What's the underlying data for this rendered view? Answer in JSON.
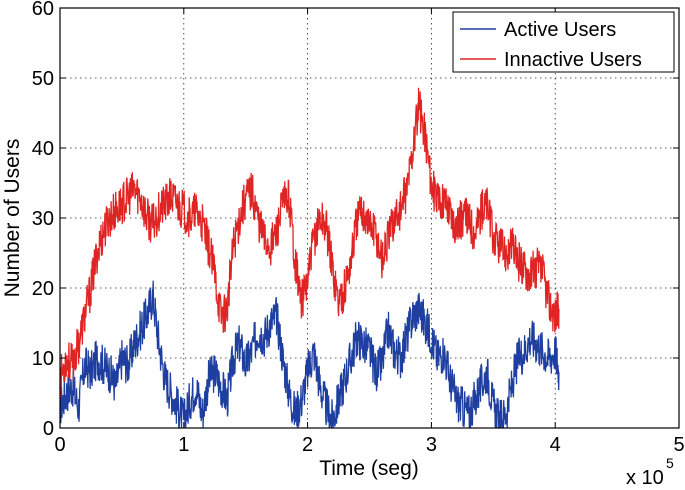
{
  "chart_data": {
    "type": "line",
    "title": "",
    "xlabel": "Time (seg)",
    "ylabel": "Number of Users",
    "x_multiplier_label": "x 10",
    "x_multiplier_exponent": "5",
    "xlim": [
      0,
      5
    ],
    "ylim": [
      0,
      60
    ],
    "x_ticks": [
      0,
      1,
      2,
      3,
      4,
      5
    ],
    "y_ticks": [
      0,
      10,
      20,
      30,
      40,
      50,
      60
    ],
    "x_tick_labels": [
      "0",
      "1",
      "2",
      "3",
      "4",
      "5"
    ],
    "y_tick_labels": [
      "0",
      "10",
      "20",
      "30",
      "40",
      "50",
      "60"
    ],
    "grid": true,
    "legend_position": "top-right",
    "series": [
      {
        "name": "Active Users",
        "color": "#1f3fa0",
        "x": [
          0,
          0.05,
          0.1,
          0.15,
          0.2,
          0.25,
          0.3,
          0.35,
          0.4,
          0.45,
          0.5,
          0.55,
          0.6,
          0.65,
          0.7,
          0.75,
          0.8,
          0.85,
          0.9,
          0.95,
          1.0,
          1.05,
          1.1,
          1.15,
          1.2,
          1.25,
          1.3,
          1.35,
          1.4,
          1.45,
          1.5,
          1.55,
          1.6,
          1.65,
          1.7,
          1.75,
          1.8,
          1.85,
          1.9,
          1.95,
          2.0,
          2.05,
          2.1,
          2.15,
          2.2,
          2.25,
          2.3,
          2.35,
          2.4,
          2.45,
          2.5,
          2.55,
          2.6,
          2.65,
          2.7,
          2.75,
          2.8,
          2.85,
          2.9,
          2.95,
          3.0,
          3.05,
          3.1,
          3.15,
          3.2,
          3.25,
          3.3,
          3.35,
          3.4,
          3.45,
          3.5,
          3.55,
          3.6,
          3.65,
          3.7,
          3.75,
          3.8,
          3.85,
          3.9,
          3.95,
          4.0,
          4.03
        ],
        "values": [
          3,
          5,
          6,
          3,
          9,
          8,
          10,
          9,
          8,
          6,
          10,
          9,
          12,
          14,
          16,
          19,
          12,
          7,
          5,
          3,
          1,
          4,
          6,
          2,
          7,
          8,
          6,
          4,
          10,
          12,
          9,
          11,
          14,
          13,
          15,
          16,
          10,
          5,
          2,
          4,
          8,
          11,
          6,
          3,
          1,
          4,
          7,
          10,
          13,
          12,
          11,
          8,
          9,
          14,
          11,
          10,
          13,
          16,
          17,
          15,
          13,
          10,
          11,
          7,
          4,
          3,
          2,
          4,
          6,
          8,
          3,
          1,
          2,
          6,
          10,
          11,
          13,
          12,
          11,
          10,
          11,
          8
        ]
      },
      {
        "name": "Innactive Users",
        "color": "#e02424",
        "x": [
          0,
          0.05,
          0.1,
          0.15,
          0.2,
          0.25,
          0.3,
          0.35,
          0.4,
          0.45,
          0.5,
          0.55,
          0.6,
          0.65,
          0.7,
          0.75,
          0.8,
          0.85,
          0.9,
          0.95,
          1.0,
          1.05,
          1.1,
          1.15,
          1.2,
          1.25,
          1.3,
          1.35,
          1.4,
          1.45,
          1.5,
          1.55,
          1.6,
          1.65,
          1.7,
          1.75,
          1.8,
          1.85,
          1.9,
          1.95,
          2.0,
          2.05,
          2.1,
          2.15,
          2.2,
          2.25,
          2.3,
          2.35,
          2.4,
          2.45,
          2.5,
          2.55,
          2.6,
          2.65,
          2.7,
          2.75,
          2.8,
          2.85,
          2.9,
          2.95,
          3.0,
          3.05,
          3.1,
          3.15,
          3.2,
          3.25,
          3.3,
          3.35,
          3.4,
          3.45,
          3.5,
          3.55,
          3.6,
          3.65,
          3.7,
          3.75,
          3.8,
          3.85,
          3.9,
          3.95,
          4.0,
          4.03
        ],
        "values": [
          7,
          10,
          9,
          12,
          16,
          20,
          25,
          28,
          30,
          31,
          32,
          33,
          34,
          33,
          30,
          29,
          31,
          32,
          33,
          32,
          31,
          30,
          31,
          29,
          26,
          22,
          16,
          17,
          26,
          30,
          33,
          34,
          30,
          27,
          26,
          28,
          32,
          33,
          24,
          18,
          21,
          27,
          30,
          29,
          23,
          18,
          20,
          24,
          30,
          31,
          29,
          28,
          24,
          27,
          30,
          31,
          34,
          40,
          46,
          42,
          35,
          32,
          33,
          31,
          29,
          30,
          30,
          28,
          31,
          32,
          27,
          26,
          25,
          26,
          24,
          23,
          22,
          23,
          22,
          18,
          16,
          17
        ]
      }
    ]
  }
}
